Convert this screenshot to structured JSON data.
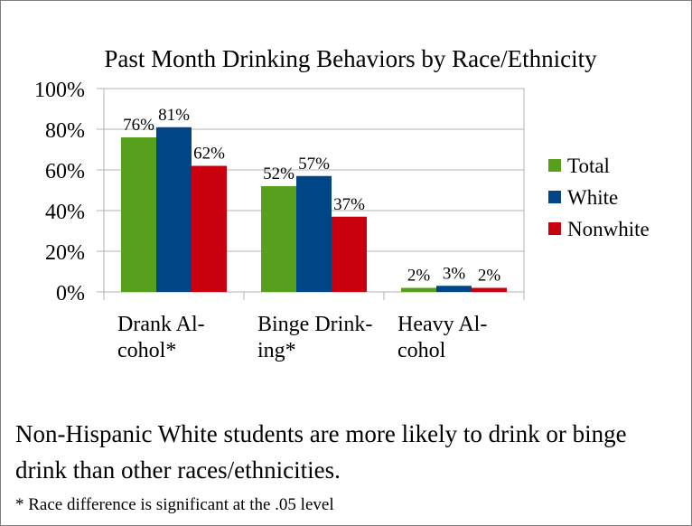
{
  "chart_data": {
    "type": "bar",
    "title": "Past Month Drinking Behaviors by Race/Ethnicity",
    "categories": [
      [
        "Drank Al-",
        "cohol*"
      ],
      [
        "Binge Drink-",
        "ing*"
      ],
      [
        "Heavy Al-",
        "cohol"
      ]
    ],
    "series": [
      {
        "name": "Total",
        "values": [
          76,
          52,
          2
        ],
        "labels": [
          "76%",
          "52%",
          "2%"
        ],
        "color": "#57a01e"
      },
      {
        "name": "White",
        "values": [
          81,
          57,
          3
        ],
        "labels": [
          "81%",
          "57%",
          "3%"
        ],
        "color": "#004586"
      },
      {
        "name": "Nonwhite",
        "values": [
          62,
          37,
          2
        ],
        "labels": [
          "62%",
          "37%",
          "2%"
        ],
        "color": "#c9000e"
      }
    ],
    "ylim": [
      0,
      100
    ],
    "yticks": [
      "0%",
      "20%",
      "40%",
      "60%",
      "80%",
      "100%"
    ],
    "grid": true,
    "legend": "right"
  },
  "caption": {
    "main": "Non-Hispanic White students are more likely to drink or binge drink than other races/ethnicities.",
    "note": "* Race difference is significant at the .05 level"
  }
}
